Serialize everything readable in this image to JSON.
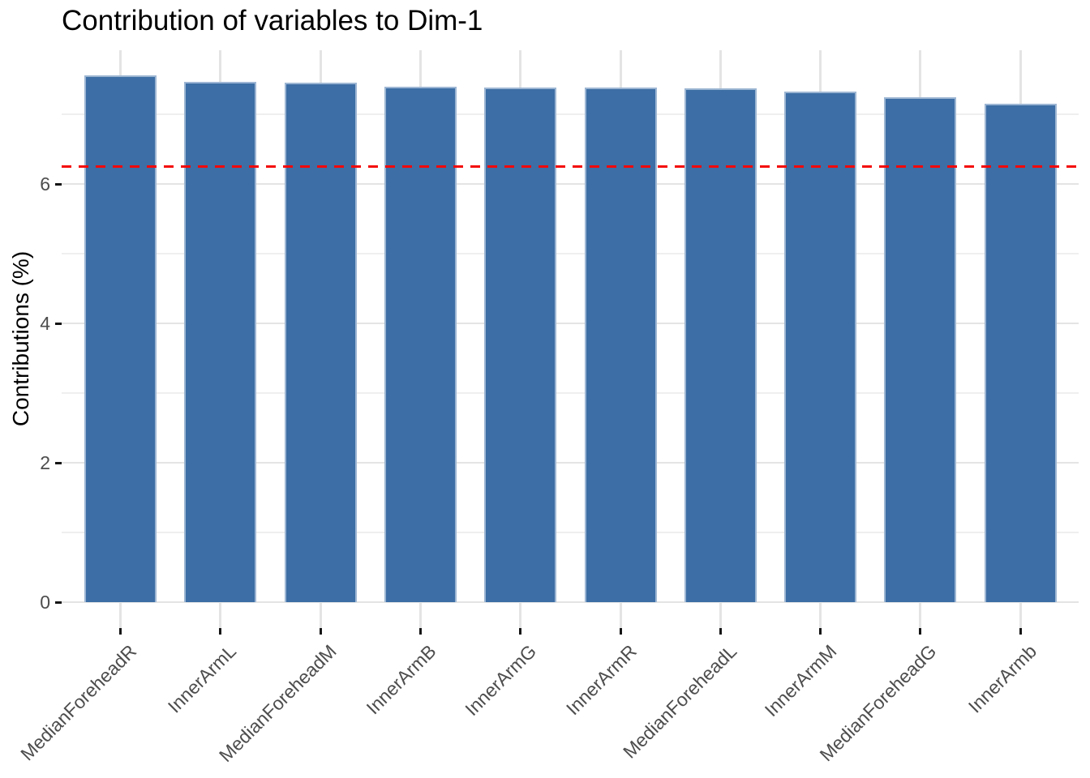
{
  "chart_data": {
    "type": "bar",
    "title": "Contribution of variables to Dim-1",
    "ylabel": "Contributions (%)",
    "xlabel": "",
    "categories": [
      "MedianForeheadR",
      "InnerArmL",
      "MedianForeheadM",
      "InnerArmB",
      "InnerArmG",
      "InnerArmR",
      "MedianForeheadL",
      "InnerArmM",
      "MedianForeheadG",
      "InnerArmb"
    ],
    "values": [
      7.56,
      7.46,
      7.45,
      7.39,
      7.38,
      7.38,
      7.37,
      7.33,
      7.24,
      7.15
    ],
    "ytick_labels": [
      "0",
      "2",
      "4",
      "6"
    ],
    "grid": {
      "major_y": [
        0,
        2,
        4,
        6
      ],
      "minor_y": [
        1,
        3,
        5,
        7
      ],
      "vertical_on_categories": true
    },
    "ylim": [
      -0.37,
      7.92
    ],
    "legend": "none",
    "reference_line": {
      "value": 6.25,
      "style": "dashed",
      "color": "#F40808"
    },
    "colors": {
      "bar_fill": "#3D6EA5",
      "bar_edge": "#9DB6D3",
      "grid_major": "#E4E4E4",
      "grid_minor": "#EFEFEF",
      "axis_text": "#4D4D4D",
      "tick_mark": "#151515",
      "title_text": "#000000"
    }
  }
}
